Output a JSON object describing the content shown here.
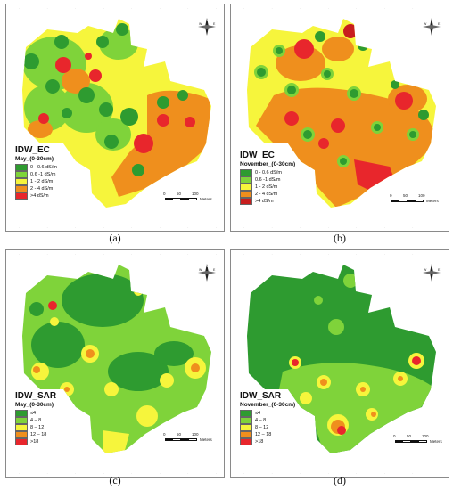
{
  "panels": [
    {
      "label": "(a)",
      "title": "IDW_EC",
      "subtitle": "May_(0-30cm)",
      "legend": [
        {
          "label": "0 - 0.6 dS/m",
          "color": "#2e9b30"
        },
        {
          "label": "0.6 -1 dS/m",
          "color": "#7fd33a"
        },
        {
          "label": "1 - 2 dS/m",
          "color": "#f6f53c"
        },
        {
          "label": "2 - 4 dS/m",
          "color": "#ef8f1d"
        },
        {
          "label": ">4 dS/m",
          "color": "#e8262c"
        }
      ]
    },
    {
      "label": "(b)",
      "title": "IDW_EC",
      "subtitle": "November_(0-30cm)",
      "legend": [
        {
          "label": "0 - 0.6 dS/m",
          "color": "#2e9b30"
        },
        {
          "label": "0.6 -1 dS/m",
          "color": "#7fd33a"
        },
        {
          "label": "1 - 2 dS/m",
          "color": "#f6f53c"
        },
        {
          "label": "2 - 4 dS/m",
          "color": "#ef8f1d"
        },
        {
          "label": ">4 dS/m",
          "color": "#c81e1e"
        }
      ]
    },
    {
      "label": "(c)",
      "title": "IDW_SAR",
      "subtitle": "May_(0-30cm)",
      "legend": [
        {
          "label": "≤4",
          "color": "#2e9b30"
        },
        {
          "label": "4 – 8",
          "color": "#7fd33a"
        },
        {
          "label": "8 – 12",
          "color": "#f6f53c"
        },
        {
          "label": "12 – 18",
          "color": "#ef8f1d"
        },
        {
          "label": ">18",
          "color": "#e8262c"
        }
      ]
    },
    {
      "label": "(d)",
      "title": "IDW_SAR",
      "subtitle": "November_(0-30cm)",
      "legend": [
        {
          "label": "≤4",
          "color": "#2e9b30"
        },
        {
          "label": "4 – 8",
          "color": "#7fd33a"
        },
        {
          "label": "8 – 12",
          "color": "#f6f53c"
        },
        {
          "label": "12 – 18",
          "color": "#ef8f1d"
        },
        {
          "label": ">18",
          "color": "#e8262c"
        }
      ]
    }
  ],
  "scale": {
    "n0": "0",
    "n50": "50",
    "n100": "100",
    "unit": "Meters"
  },
  "north": {
    "n": "N",
    "s": "S",
    "e": "E",
    "w": "W"
  },
  "colors": {
    "dark_green": "#2e9b30",
    "light_green": "#7fd33a",
    "yellow": "#f6f53c",
    "orange": "#ef8f1d",
    "red": "#e8262c",
    "dark_red": "#c81e1e"
  }
}
